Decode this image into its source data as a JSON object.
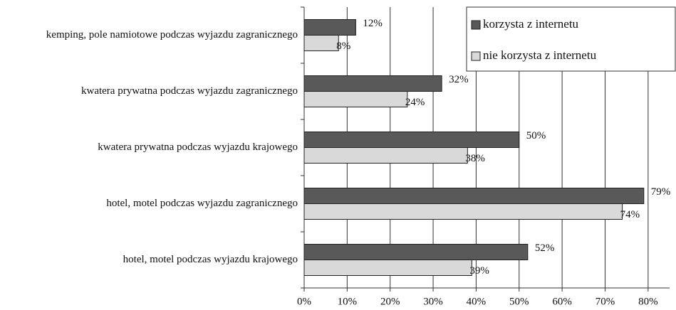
{
  "chart_data": {
    "type": "barh",
    "categories": [
      "kemping, pole namiotowe podczas wyjazdu zagranicznego",
      "kwatera prywatna podczas wyjazdu zagranicznego",
      "kwatera prywatna podczas wyjazdu krajowego",
      "hotel, motel podczas wyjazdu zagranicznego",
      "hotel, motel podczas wyjazdu krajowego"
    ],
    "series": [
      {
        "name": "korzysta z internetu",
        "color": "#595959",
        "values": [
          12,
          32,
          50,
          79,
          52
        ],
        "value_labels": [
          "12%",
          "32%",
          "50%",
          "79%",
          "52%"
        ]
      },
      {
        "name": "nie korzysta z internetu",
        "color": "#d9d9d9",
        "values": [
          8,
          24,
          38,
          74,
          39
        ],
        "value_labels": [
          "8%",
          "24%",
          "38%",
          "74%",
          "39%"
        ]
      }
    ],
    "xlim": [
      0,
      85
    ],
    "xticks": [
      {
        "value": 0,
        "label": "0%"
      },
      {
        "value": 10,
        "label": "10%"
      },
      {
        "value": 20,
        "label": "20%"
      },
      {
        "value": 30,
        "label": "30%"
      },
      {
        "value": 40,
        "label": "40%"
      },
      {
        "value": 50,
        "label": "50%"
      },
      {
        "value": 60,
        "label": "60%"
      },
      {
        "value": 70,
        "label": "70%"
      },
      {
        "value": 80,
        "label": "80%"
      }
    ],
    "grid": true,
    "legend": "top-right"
  }
}
